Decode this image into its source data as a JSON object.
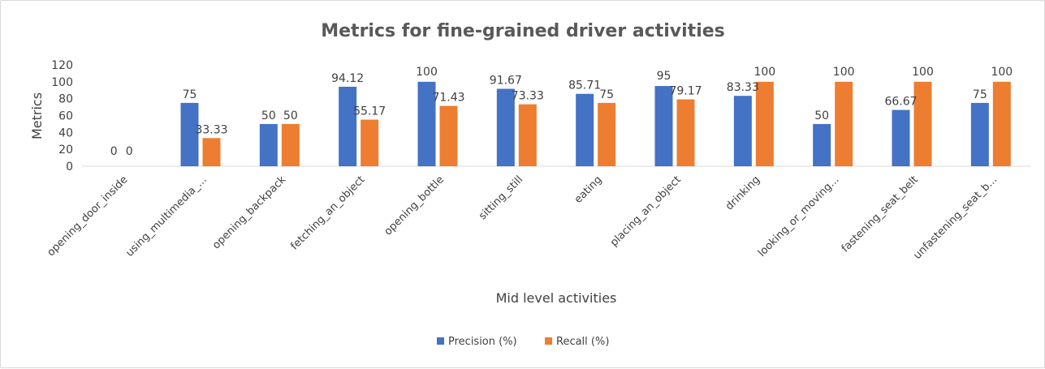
{
  "chart_data": {
    "type": "bar",
    "title": "Metrics for fine-grained driver activities",
    "xlabel": "Mid level activities",
    "ylabel": "Metrics",
    "ylim": [
      0,
      120
    ],
    "yticks": [
      0,
      20,
      40,
      60,
      80,
      100,
      120
    ],
    "grid": false,
    "legend_position": "bottom",
    "categories": [
      "opening_door_inside",
      "using_multimedia_...",
      "opening_backpack",
      "fetching_an_object",
      "opening_bottle",
      "sitting_still",
      "eating",
      "placing_an_object",
      "drinking",
      "looking_or_moving...",
      "fastening_seat_belt",
      "unfastening_seat_b..."
    ],
    "series": [
      {
        "name": "Precision (%)",
        "color": "#4472c4",
        "values": [
          0,
          75,
          50,
          94.12,
          100,
          91.67,
          85.71,
          95,
          83.33,
          50,
          66.67,
          75
        ],
        "labels": [
          "0",
          "75",
          "50",
          "94.12",
          "100",
          "91.67",
          "85.71",
          "95",
          "83.33",
          "50",
          "66.67",
          "75"
        ]
      },
      {
        "name": "Recall (%)",
        "color": "#ed7d31",
        "values": [
          0,
          33.33,
          50,
          55.17,
          71.43,
          73.33,
          75,
          79.17,
          100,
          100,
          100,
          100
        ],
        "labels": [
          "0",
          "33.33",
          "50",
          "55.17",
          "71.43",
          "73.33",
          "75",
          "79.17",
          "100",
          "100",
          "100",
          "100"
        ]
      }
    ]
  }
}
